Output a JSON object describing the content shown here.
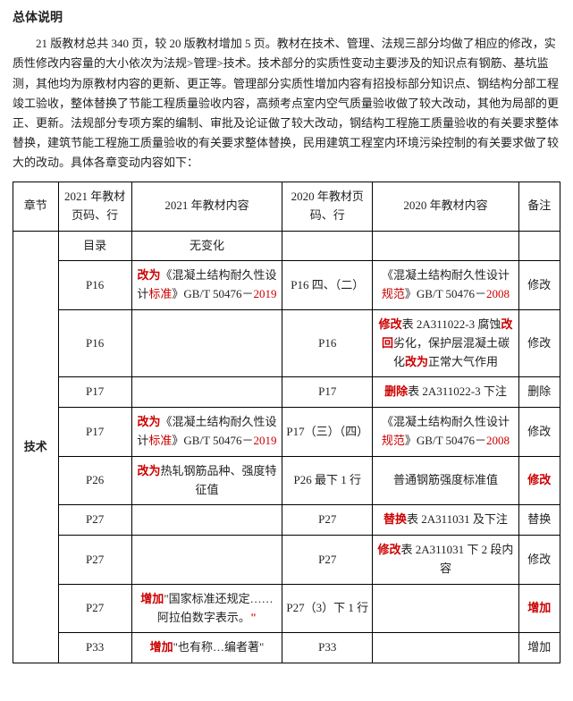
{
  "title": "总体说明",
  "intro": "21 版教材总共 340 页，较 20 版教材增加 5 页。教材在技术、管理、法规三部分均做了相应的修改，实质性修改内容量的大小依次为法规>管理>技术。技术部分的实质性变动主要涉及的知识点有钢筋、基坑监测，其他均为原教材内容的更新、更正等。管理部分实质性增加内容有招投标部分知识点、钢结构分部工程竣工验收，整体替换了节能工程质量验收内容，高频考点室内空气质量验收做了较大改动，其他为局部的更正、更新。法规部分专项方案的编制、审批及论证做了较大改动，钢结构工程施工质量验收的有关要求整体替换，建筑节能工程施工质量验收的有关要求整体替换，民用建筑工程室内环境污染控制的有关要求做了较大的改动。具体各章变动内容如下：",
  "headers": {
    "col1": "章节",
    "col2": "2021 年教材页码、行",
    "col3": "2021 年教材内容",
    "col4": "2020 年教材页码、行",
    "col5": "2020 年教材内容",
    "col6": "备注"
  },
  "section_header": {
    "label": "技术",
    "c2": "目录",
    "c3": "无变化",
    "c4": "",
    "c5": "",
    "c6": ""
  },
  "rows": [
    {
      "c2": "P16",
      "c3": [
        {
          "t": "改为",
          "cls": "red bold"
        },
        {
          "t": "《混凝土结构耐久性设计"
        },
        {
          "t": "标准",
          "cls": "red"
        },
        {
          "t": "》GB/T 50476－"
        },
        {
          "t": "2019",
          "cls": "red"
        }
      ],
      "c4": "P16 四、（二）",
      "c5": [
        {
          "t": "《混凝土结构耐久性设计"
        },
        {
          "t": "规范",
          "cls": "red"
        },
        {
          "t": "》GB/T 50476－"
        },
        {
          "t": "2008",
          "cls": "red"
        }
      ],
      "c6": "修改"
    },
    {
      "c2": "P16",
      "c3": [],
      "c4": "P16",
      "c5": [
        {
          "t": "修改",
          "cls": "red bold"
        },
        {
          "t": "表 2A311022-3 腐蚀"
        },
        {
          "t": "改回",
          "cls": "red bold"
        },
        {
          "t": "劣化，保护层混凝土碳化"
        },
        {
          "t": "改为",
          "cls": "red bold"
        },
        {
          "t": "正常大气作用"
        }
      ],
      "c6": "修改"
    },
    {
      "c2": "P17",
      "c3": [],
      "c4": "P17",
      "c5": [
        {
          "t": "删除",
          "cls": "red bold"
        },
        {
          "t": "表 2A311022-3 下注"
        }
      ],
      "c6": "删除"
    },
    {
      "c2": "P17",
      "c3": [
        {
          "t": "改为",
          "cls": "red bold"
        },
        {
          "t": "《混凝土结构耐久性设计"
        },
        {
          "t": "标准",
          "cls": "red"
        },
        {
          "t": "》GB/T 50476－"
        },
        {
          "t": "2019",
          "cls": "red"
        }
      ],
      "c4": "P17（三）（四）",
      "c5": [
        {
          "t": "《混凝土结构耐久性设计"
        },
        {
          "t": "规范",
          "cls": "red"
        },
        {
          "t": "》GB/T 50476－"
        },
        {
          "t": "2008",
          "cls": "red"
        }
      ],
      "c6": "修改"
    },
    {
      "c2": "P26",
      "c3": [
        {
          "t": "改为",
          "cls": "red bold"
        },
        {
          "t": "热轧钢筋品种、强度特征值"
        }
      ],
      "c4": "P26 最下 1 行",
      "c5": [
        {
          "t": "普通钢筋强度标准值"
        }
      ],
      "c6_cls": "red bold",
      "c6": "修改"
    },
    {
      "c2": "P27",
      "c3": [],
      "c4": "P27",
      "c5": [
        {
          "t": "替换",
          "cls": "red bold"
        },
        {
          "t": "表 2A311031 及下注"
        }
      ],
      "c6": "替换"
    },
    {
      "c2": "P27",
      "c3": [],
      "c4": "P27",
      "c5": [
        {
          "t": "修改",
          "cls": "red bold"
        },
        {
          "t": "表 2A311031 下 2 段内容"
        }
      ],
      "c6": "修改"
    },
    {
      "c2": "P27",
      "c3": [
        {
          "t": "增加",
          "cls": "red bold"
        },
        {
          "t": "\""
        },
        {
          "t": "国家标准还规定……阿拉伯数字表示。"
        },
        {
          "t": "\"",
          "cls": "red bold"
        }
      ],
      "c4": "P27（3）下 1 行",
      "c5": [],
      "c6_cls": "red bold",
      "c6": "增加"
    },
    {
      "c2": "P33",
      "c3": [
        {
          "t": "增加",
          "cls": "red bold"
        },
        {
          "t": "\"也有称…编者著\""
        }
      ],
      "c4": "P33",
      "c5": [],
      "c6": "增加"
    }
  ]
}
